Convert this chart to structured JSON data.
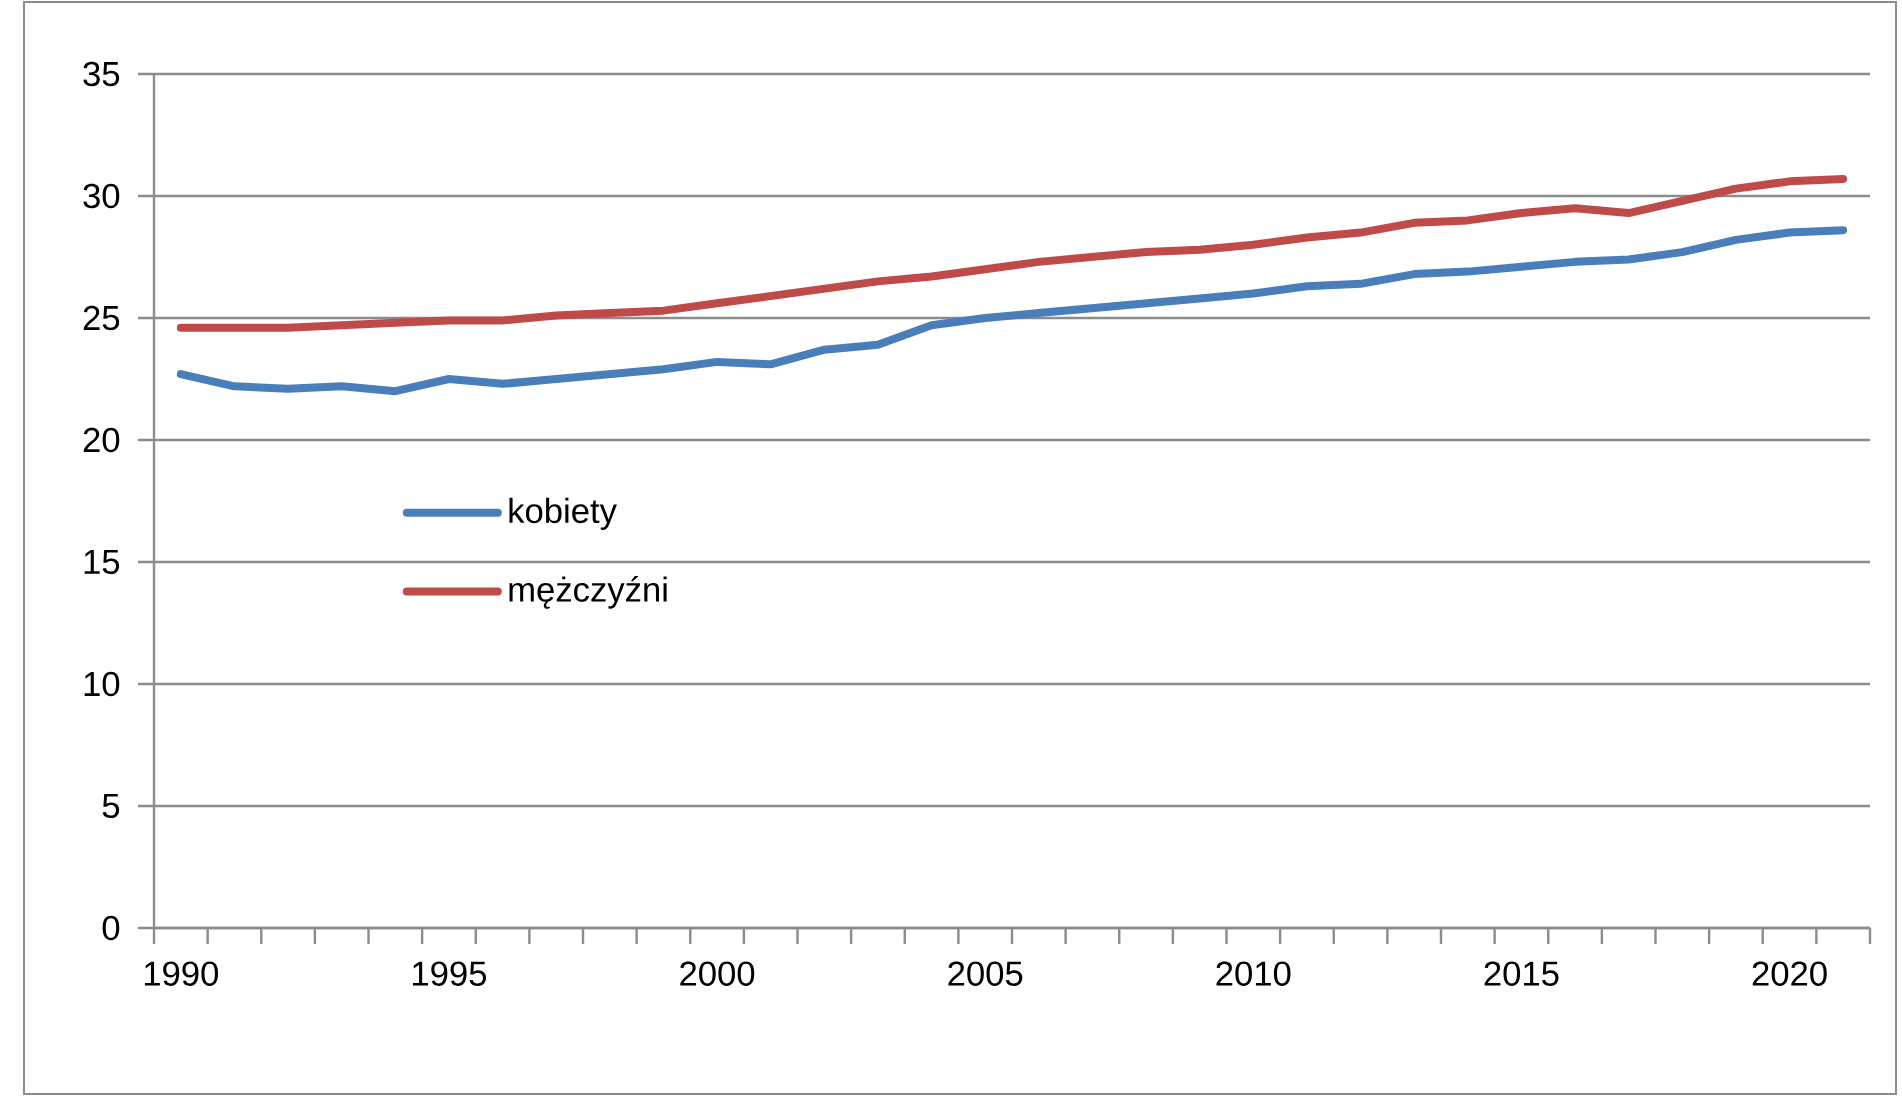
{
  "chart_data": {
    "type": "line",
    "categories": [
      "1990",
      null,
      null,
      null,
      null,
      "1995",
      null,
      null,
      null,
      null,
      "2000",
      null,
      null,
      null,
      null,
      "2005",
      null,
      null,
      null,
      null,
      "2010",
      null,
      null,
      null,
      null,
      "2015",
      null,
      null,
      null,
      null,
      "2020",
      null
    ],
    "series": [
      {
        "name": "kobiety",
        "color": "#4a7ebb",
        "values": [
          22.7,
          22.2,
          22.1,
          22.2,
          22.0,
          22.5,
          22.3,
          22.5,
          22.7,
          22.9,
          23.2,
          23.1,
          23.7,
          23.9,
          24.7,
          25.0,
          25.2,
          25.4,
          25.6,
          25.8,
          26.0,
          26.3,
          26.4,
          26.8,
          26.9,
          27.1,
          27.3,
          27.4,
          27.7,
          28.2,
          28.5,
          28.6
        ]
      },
      {
        "name": "mężczyźni",
        "color": "#be4b48",
        "values": [
          24.6,
          24.6,
          24.6,
          24.7,
          24.8,
          24.9,
          24.9,
          25.1,
          25.2,
          25.3,
          25.6,
          25.9,
          26.2,
          26.5,
          26.7,
          27.0,
          27.3,
          27.5,
          27.7,
          27.8,
          28.0,
          28.3,
          28.5,
          28.9,
          29.0,
          29.3,
          29.5,
          29.3,
          29.8,
          30.3,
          30.6,
          30.7
        ]
      }
    ],
    "ylim": [
      0,
      35
    ],
    "yticks": [
      0,
      5,
      10,
      15,
      20,
      25,
      30,
      35
    ],
    "grid": "y",
    "legend": "left",
    "marker": "none",
    "line_style": "solid"
  }
}
